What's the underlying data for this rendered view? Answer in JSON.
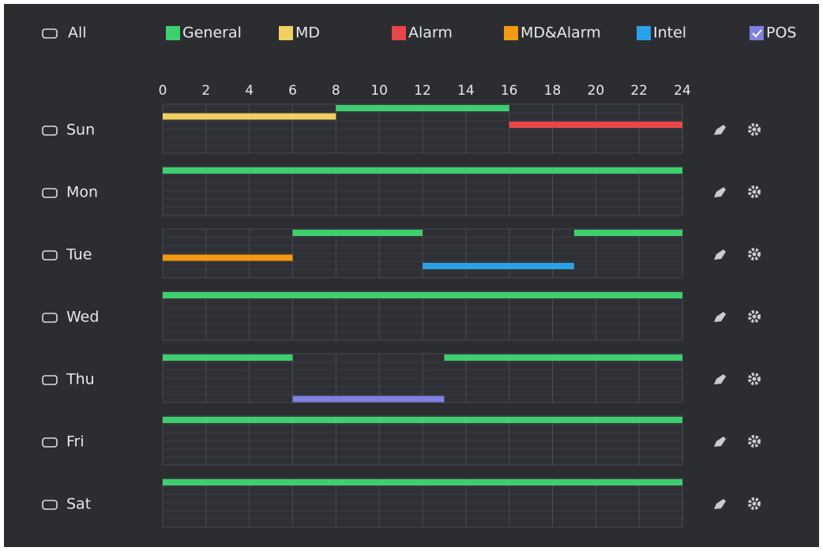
{
  "legend": {
    "all": "All",
    "items": [
      {
        "label": "General",
        "color": "#3ecf6e",
        "checked": false
      },
      {
        "label": "MD",
        "color": "#f0d060",
        "checked": false
      },
      {
        "label": "Alarm",
        "color": "#e8464a",
        "checked": false
      },
      {
        "label": "MD&Alarm",
        "color": "#f29a11",
        "checked": false
      },
      {
        "label": "Intel",
        "color": "#2aa2e8",
        "checked": false
      },
      {
        "label": "POS",
        "color": "#8080e0",
        "checked": true
      }
    ]
  },
  "axis": {
    "lim": [
      0,
      24
    ],
    "ticks": [
      0,
      2,
      4,
      6,
      8,
      10,
      12,
      14,
      16,
      18,
      20,
      22,
      24
    ]
  },
  "days": [
    {
      "label": "Sun",
      "periods": [
        {
          "mode": "General",
          "start": 8,
          "end": 16
        },
        {
          "mode": "MD",
          "start": 0,
          "end": 8
        },
        {
          "mode": "Alarm",
          "start": 16,
          "end": 24
        }
      ]
    },
    {
      "label": "Mon",
      "periods": [
        {
          "mode": "General",
          "start": 0,
          "end": 24
        }
      ]
    },
    {
      "label": "Tue",
      "periods": [
        {
          "mode": "General",
          "start": 6,
          "end": 12
        },
        {
          "mode": "General",
          "start": 19,
          "end": 24
        },
        {
          "mode": "MD&Alarm",
          "start": 0,
          "end": 6
        },
        {
          "mode": "Intel",
          "start": 12,
          "end": 19
        }
      ]
    },
    {
      "label": "Wed",
      "periods": [
        {
          "mode": "General",
          "start": 0,
          "end": 24
        }
      ]
    },
    {
      "label": "Thu",
      "periods": [
        {
          "mode": "General",
          "start": 0,
          "end": 6
        },
        {
          "mode": "General",
          "start": 13,
          "end": 24
        },
        {
          "mode": "POS",
          "start": 6,
          "end": 13
        }
      ]
    },
    {
      "label": "Fri",
      "periods": [
        {
          "mode": "General",
          "start": 0,
          "end": 24
        }
      ]
    },
    {
      "label": "Sat",
      "periods": [
        {
          "mode": "General",
          "start": 0,
          "end": 24
        }
      ]
    }
  ]
}
